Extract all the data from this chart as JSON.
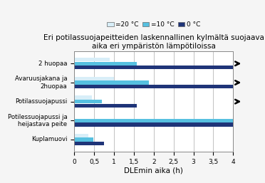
{
  "title": "Eri potilassuojapeitteiden laskennallinen kylmältä suojaava\naika eri ympäristön lämpötiloissa",
  "categories": [
    "2 huopaa",
    "Avaruusjakana ja\n2huopaa",
    "Potilassuojapussi",
    "Potilessuojapussi ja\nheijastava peite",
    "Kuplamuovi"
  ],
  "colors": [
    "#d8eef8",
    "#56c0e0",
    "#1f3478"
  ],
  "values": [
    [
      0.9,
      1.58,
      4.0
    ],
    [
      1.0,
      1.87,
      4.0
    ],
    [
      0.45,
      0.7,
      1.58
    ],
    [
      0.0,
      4.0,
      4.0
    ],
    [
      0.35,
      0.48,
      0.75
    ]
  ],
  "xlabel": "DLEmin aika (h)",
  "xlim": [
    0,
    4.0
  ],
  "xticks": [
    0,
    0.5,
    1,
    1.5,
    2,
    2.5,
    3,
    3.5,
    4
  ],
  "xtick_labels": [
    "0",
    "0,5",
    "1",
    "1,5",
    "2",
    "2,5",
    "3",
    "3,5",
    "4"
  ],
  "arrow_cats": [
    0,
    1,
    2
  ],
  "background_color": "#f5f5f5",
  "plot_bg": "#ffffff",
  "legend_labels": [
    "=20 °C",
    "=10 °C",
    "0 °C"
  ]
}
